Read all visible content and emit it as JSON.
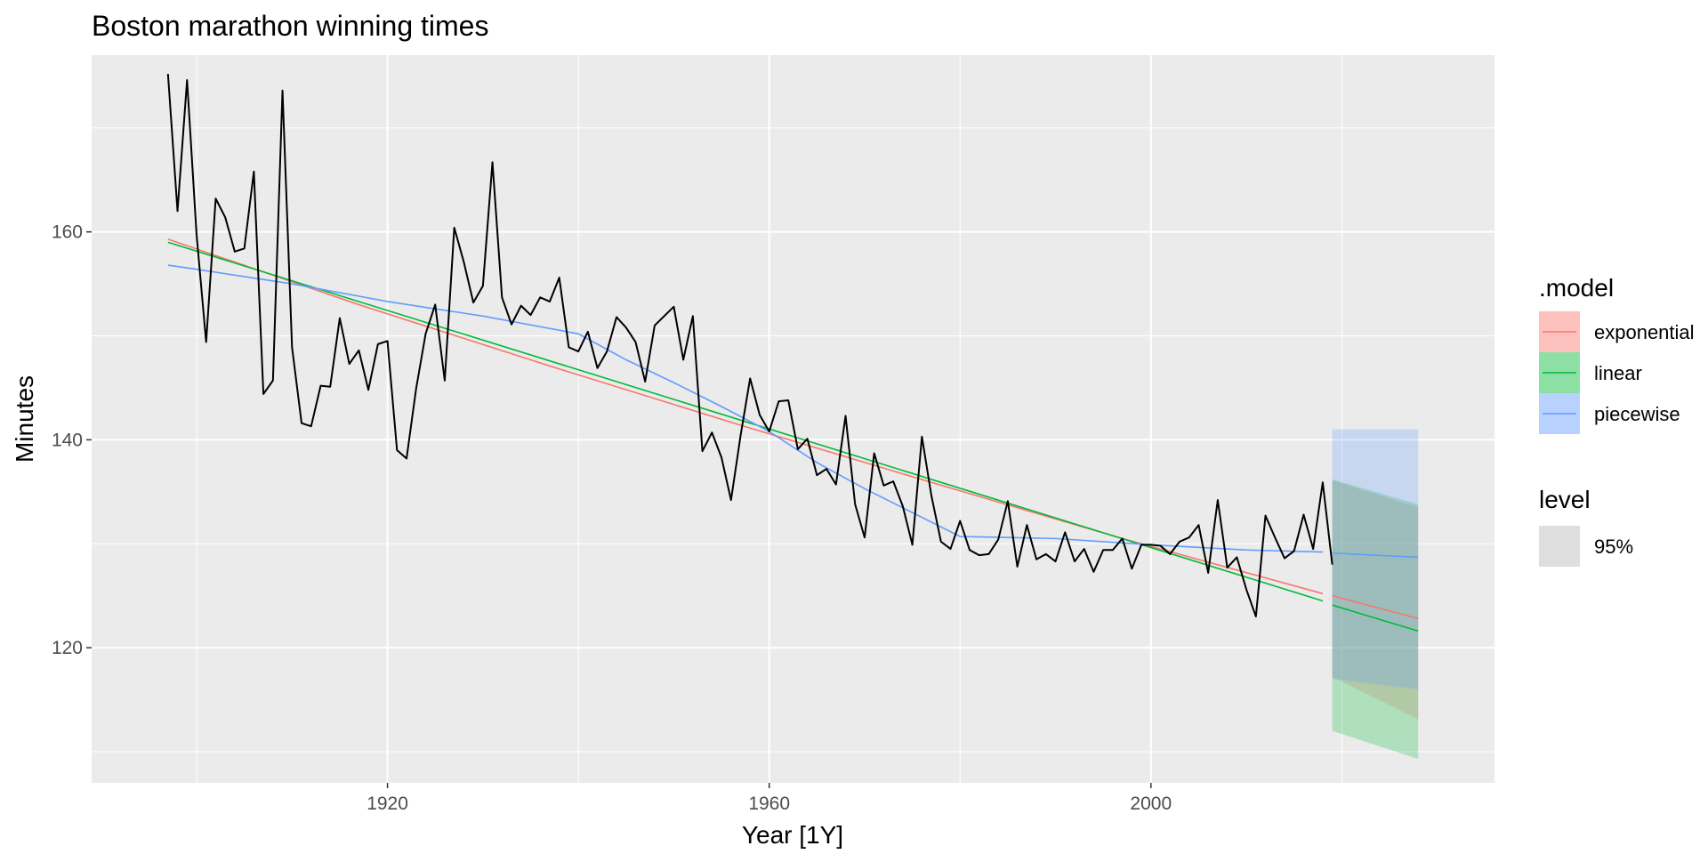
{
  "chart_data": {
    "type": "line",
    "title": "Boston marathon winning times",
    "xlabel": "Year [1Y]",
    "ylabel": "Minutes",
    "xlim": [
      1889,
      2036
    ],
    "ylim": [
      107,
      177
    ],
    "x_ticks": [
      1920,
      1960,
      2000
    ],
    "x_ticks_minor": [
      1900,
      1940,
      1980,
      2020
    ],
    "y_ticks": [
      120,
      140,
      160
    ],
    "y_ticks_minor": [
      110,
      130,
      150,
      170
    ],
    "grid": true,
    "background": "#ebebeb",
    "legend_placement": "right",
    "observed": {
      "name": "Minutes",
      "color": "#000000",
      "x": [
        1897,
        1898,
        1899,
        1900,
        1901,
        1902,
        1903,
        1904,
        1905,
        1906,
        1907,
        1908,
        1909,
        1910,
        1911,
        1912,
        1913,
        1914,
        1915,
        1916,
        1917,
        1918,
        1919,
        1920,
        1921,
        1922,
        1923,
        1924,
        1925,
        1926,
        1927,
        1928,
        1929,
        1930,
        1931,
        1932,
        1933,
        1934,
        1935,
        1936,
        1937,
        1938,
        1939,
        1940,
        1941,
        1942,
        1943,
        1944,
        1945,
        1946,
        1947,
        1948,
        1949,
        1950,
        1951,
        1952,
        1953,
        1954,
        1955,
        1956,
        1957,
        1958,
        1959,
        1960,
        1961,
        1962,
        1963,
        1964,
        1965,
        1966,
        1967,
        1968,
        1969,
        1970,
        1971,
        1972,
        1973,
        1974,
        1975,
        1976,
        1977,
        1978,
        1979,
        1980,
        1981,
        1982,
        1983,
        1984,
        1985,
        1986,
        1987,
        1988,
        1989,
        1990,
        1991,
        1992,
        1993,
        1994,
        1995,
        1996,
        1997,
        1998,
        1999,
        2000,
        2001,
        2002,
        2003,
        2004,
        2005,
        2006,
        2007,
        2008,
        2009,
        2010,
        2011,
        2012,
        2013,
        2014,
        2015,
        2016,
        2017,
        2018,
        2019
      ],
      "y": [
        175.2,
        162.0,
        174.6,
        159.7,
        149.4,
        163.2,
        161.4,
        158.1,
        158.4,
        165.8,
        144.4,
        145.7,
        173.6,
        148.9,
        141.6,
        141.3,
        145.2,
        145.1,
        151.7,
        147.3,
        148.6,
        144.8,
        149.2,
        149.5,
        139.0,
        138.2,
        144.9,
        150.2,
        153.0,
        145.7,
        160.4,
        157.1,
        153.2,
        154.8,
        166.7,
        153.7,
        151.1,
        152.9,
        152.0,
        153.7,
        153.3,
        155.6,
        148.9,
        148.5,
        150.4,
        146.9,
        148.5,
        151.8,
        150.8,
        149.4,
        145.6,
        151.0,
        151.9,
        152.8,
        147.7,
        151.9,
        138.9,
        140.7,
        138.3,
        134.2,
        140.4,
        145.9,
        142.4,
        140.8,
        143.7,
        143.8,
        139.1,
        140.1,
        136.6,
        137.2,
        135.7,
        142.3,
        133.8,
        130.6,
        138.7,
        135.6,
        136.0,
        133.6,
        129.9,
        140.3,
        134.6,
        130.2,
        129.5,
        132.2,
        129.4,
        128.9,
        129.0,
        130.4,
        134.1,
        127.8,
        131.8,
        128.5,
        129.0,
        128.3,
        131.1,
        128.3,
        129.5,
        127.3,
        129.4,
        129.4,
        130.5,
        127.6,
        129.9,
        129.9,
        129.8,
        129.0,
        130.2,
        130.6,
        131.8,
        127.2,
        134.2,
        127.7,
        128.7,
        125.6,
        123.0,
        132.7,
        130.6,
        128.6,
        129.3,
        132.8,
        129.5,
        135.9,
        128.0
      ]
    },
    "series": [
      {
        "name": "exponential",
        "color": "#f8766d",
        "band_color": "#f8766d",
        "x": [
          1897,
          1917,
          1937,
          1957,
          1977,
          1997,
          2018
        ],
        "y": [
          159.3,
          153.0,
          147.1,
          141.4,
          135.9,
          130.5,
          125.2
        ],
        "forecast_x": [
          2019,
          2028
        ],
        "forecast_y": [
          125.0,
          122.8
        ],
        "band_lower": [
          117.2,
          113.1
        ],
        "band_upper": [
          136.1,
          133.5
        ]
      },
      {
        "name": "linear",
        "color": "#00ba38",
        "band_color": "#00ba38",
        "x": [
          1897,
          2018
        ],
        "y": [
          159.0,
          124.5
        ],
        "forecast_x": [
          2019,
          2028
        ],
        "forecast_y": [
          124.1,
          121.6
        ],
        "band_lower": [
          112.0,
          109.3
        ],
        "band_upper": [
          136.2,
          133.8
        ]
      },
      {
        "name": "piecewise",
        "color": "#619cff",
        "band_color": "#619cff",
        "x": [
          1897,
          1900,
          1910,
          1920,
          1930,
          1940,
          1945,
          1950,
          1955,
          1960,
          1965,
          1970,
          1975,
          1980,
          1990,
          2000,
          2010,
          2018
        ],
        "y": [
          156.8,
          156.4,
          155.0,
          153.3,
          151.9,
          150.2,
          147.7,
          145.5,
          143.2,
          140.8,
          137.8,
          135.3,
          133.0,
          130.7,
          130.5,
          129.9,
          129.4,
          129.2
        ],
        "forecast_x": [
          2019,
          2028
        ],
        "forecast_y": [
          129.1,
          128.7
        ],
        "band_lower": [
          117.0,
          116.0
        ],
        "band_upper": [
          141.0,
          141.0
        ]
      }
    ],
    "legend": {
      "model_title": ".model",
      "models": [
        "exponential",
        "linear",
        "piecewise"
      ],
      "level_title": "level",
      "level_label": "95%",
      "level_color": "#dedede"
    }
  }
}
